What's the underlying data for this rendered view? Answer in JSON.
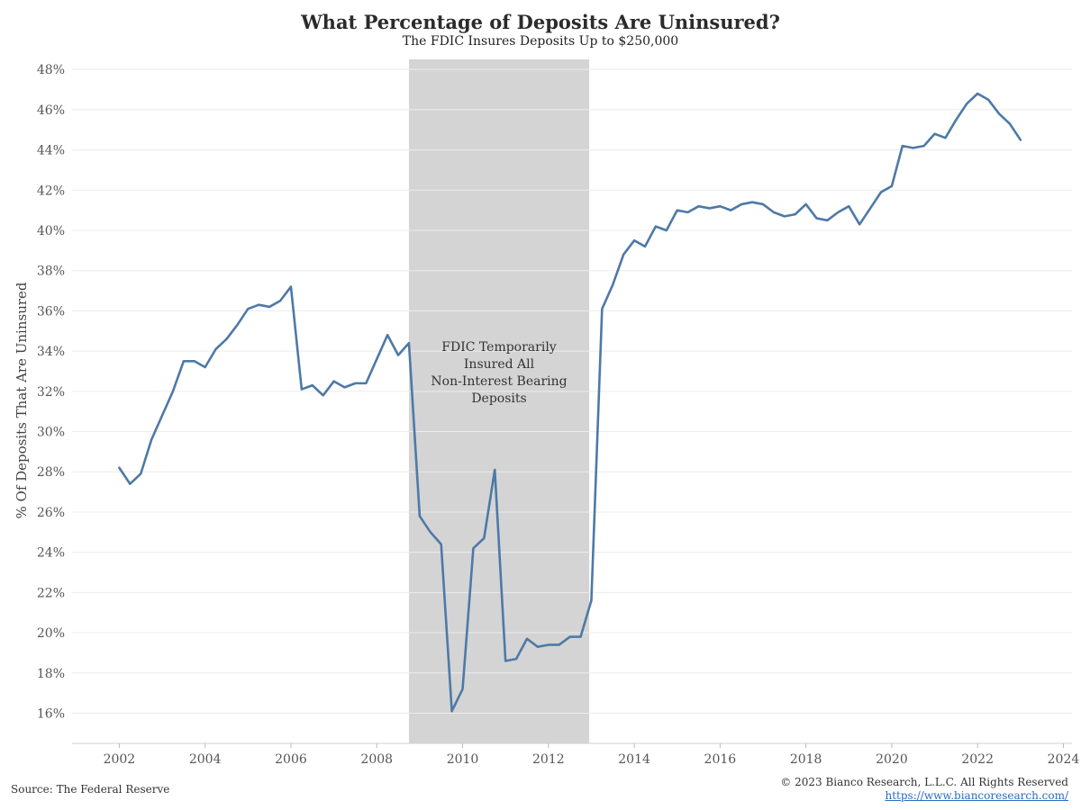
{
  "chart_data": {
    "type": "line",
    "title": "What Percentage of Deposits Are Uninsured?",
    "subtitle": "The FDIC Insures Deposits Up to $250,000",
    "ylabel": "% Of Deposits That Are Uninsured",
    "xlabel": "",
    "xlim": [
      2000.9,
      2024.2
    ],
    "ylim": [
      14.5,
      48.5
    ],
    "x_ticks": [
      2002,
      2004,
      2006,
      2008,
      2010,
      2012,
      2014,
      2016,
      2018,
      2020,
      2022,
      2024
    ],
    "y_ticks": [
      16,
      18,
      20,
      22,
      24,
      26,
      28,
      30,
      32,
      34,
      36,
      38,
      40,
      42,
      44,
      46,
      48
    ],
    "y_tick_suffix": "%",
    "grid": "horizontal",
    "line_color": "#4e79a7",
    "shade_color": "#d4d4d4",
    "shaded_region": {
      "x_start": 2008.75,
      "x_end": 2012.95,
      "label_lines": [
        "FDIC Temporarily",
        "Insured All",
        "Non-Interest Bearing",
        "Deposits"
      ]
    },
    "series": [
      {
        "x": [
          2002.0,
          2002.25,
          2002.5,
          2002.75,
          2003.0,
          2003.25,
          2003.5,
          2003.75,
          2004.0,
          2004.25,
          2004.5,
          2004.75,
          2005.0,
          2005.25,
          2005.5,
          2005.75,
          2006.0,
          2006.25,
          2006.5,
          2006.75,
          2007.0,
          2007.25,
          2007.5,
          2007.75,
          2008.0,
          2008.25,
          2008.5,
          2008.75,
          2009.0,
          2009.25,
          2009.5,
          2009.75,
          2010.0,
          2010.25,
          2010.5,
          2010.75,
          2011.0,
          2011.25,
          2011.5,
          2011.75,
          2012.0,
          2012.25,
          2012.5,
          2012.75,
          2013.0,
          2013.25,
          2013.5,
          2013.75,
          2014.0,
          2014.25,
          2014.5,
          2014.75,
          2015.0,
          2015.25,
          2015.5,
          2015.75,
          2016.0,
          2016.25,
          2016.5,
          2016.75,
          2017.0,
          2017.25,
          2017.5,
          2017.75,
          2018.0,
          2018.25,
          2018.5,
          2018.75,
          2019.0,
          2019.25,
          2019.5,
          2019.75,
          2020.0,
          2020.25,
          2020.5,
          2020.75,
          2021.0,
          2021.25,
          2021.5,
          2021.75,
          2022.0,
          2022.25,
          2022.5,
          2022.75,
          2023.0
        ],
        "y": [
          28.2,
          27.4,
          27.9,
          29.6,
          30.8,
          32.0,
          33.5,
          33.5,
          33.2,
          34.1,
          34.6,
          35.3,
          36.1,
          36.3,
          36.2,
          36.5,
          37.2,
          32.1,
          32.3,
          31.8,
          32.5,
          32.2,
          32.4,
          32.4,
          33.6,
          34.8,
          33.8,
          34.4,
          25.8,
          25.0,
          24.4,
          16.1,
          17.2,
          24.2,
          24.7,
          28.1,
          18.6,
          18.7,
          19.7,
          19.3,
          19.4,
          19.4,
          19.8,
          19.8,
          21.6,
          36.1,
          37.3,
          38.8,
          39.5,
          39.2,
          40.2,
          40.0,
          41.0,
          40.9,
          41.2,
          41.1,
          41.2,
          41.0,
          41.3,
          41.4,
          41.3,
          40.9,
          40.7,
          40.8,
          41.3,
          40.6,
          40.5,
          40.9,
          41.2,
          40.3,
          41.1,
          41.9,
          42.2,
          44.2,
          44.1,
          44.2,
          44.8,
          44.6,
          45.5,
          46.3,
          46.8,
          46.5,
          45.8,
          45.3,
          44.5
        ]
      }
    ]
  },
  "footer": {
    "source": "Source: The Federal Reserve",
    "copyright": "© 2023 Bianco Research, L.L.C. All Rights Reserved",
    "url": "https://www.biancoresearch.com/"
  }
}
